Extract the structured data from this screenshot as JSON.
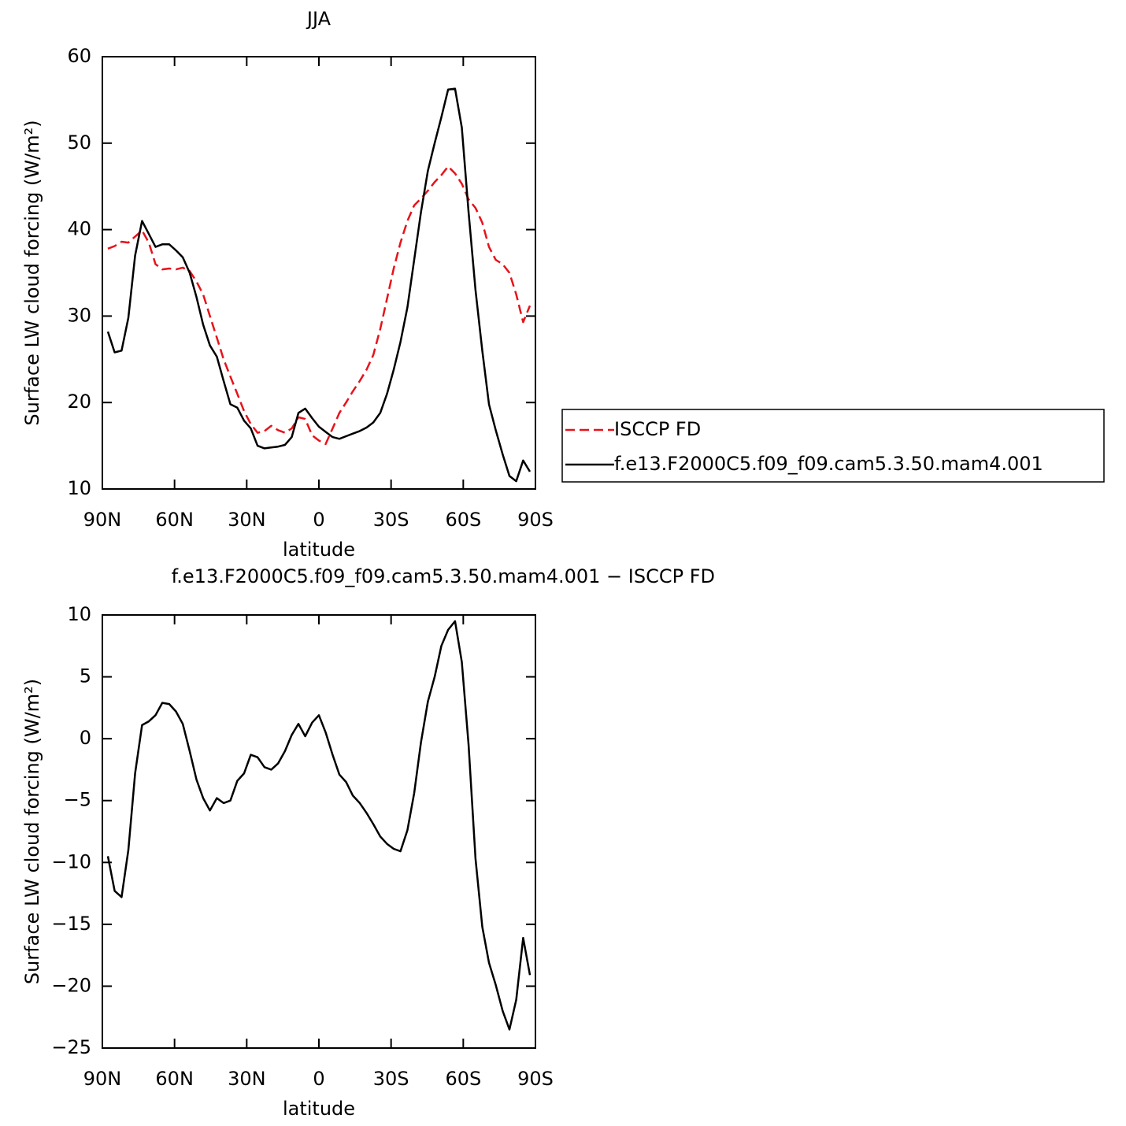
{
  "chart_data": [
    {
      "type": "line",
      "title": "JJA",
      "xlabel": "latitude",
      "ylabel": "Surface LW cloud forcing (W/m²)",
      "xlim": [
        90,
        -90
      ],
      "xticks": [
        {
          "value": 90,
          "label": "90N"
        },
        {
          "value": 60,
          "label": "60N"
        },
        {
          "value": 30,
          "label": "30N"
        },
        0,
        {
          "value": -30,
          "label": "30S"
        },
        {
          "value": -60,
          "label": "60S"
        },
        {
          "value": -90,
          "label": "90S"
        }
      ],
      "ylim": [
        10,
        60
      ],
      "yticks": [
        10,
        20,
        30,
        40,
        50,
        60
      ],
      "legend": "right",
      "x": [
        87.7,
        84.9,
        82.0,
        79.2,
        76.4,
        73.5,
        70.7,
        67.9,
        65.1,
        62.2,
        59.4,
        56.6,
        53.7,
        50.9,
        48.1,
        45.3,
        42.4,
        39.6,
        36.8,
        33.9,
        31.1,
        28.3,
        25.5,
        22.6,
        19.8,
        17.0,
        14.1,
        11.3,
        8.5,
        5.7,
        2.8,
        0,
        -2.8,
        -5.7,
        -8.5,
        -11.3,
        -14.1,
        -17.0,
        -19.8,
        -22.6,
        -25.5,
        -28.3,
        -31.1,
        -33.9,
        -36.8,
        -39.6,
        -42.4,
        -45.3,
        -48.1,
        -50.9,
        -53.7,
        -56.6,
        -59.4,
        -62.2,
        -65.1,
        -67.9,
        -70.7,
        -73.5,
        -76.4,
        -79.2,
        -82.0,
        -84.9,
        -87.7
      ],
      "series": [
        {
          "name": "ISCCP FD",
          "color": "#e8121a",
          "dash": true,
          "values": [
            37.8,
            38.1,
            38.6,
            38.5,
            39.2,
            39.9,
            38.5,
            36.0,
            35.4,
            35.5,
            35.4,
            35.6,
            35.2,
            34.0,
            32.5,
            30.0,
            27.5,
            25.0,
            23.0,
            21.0,
            19.0,
            17.5,
            16.5,
            16.7,
            17.3,
            16.8,
            16.5,
            17.0,
            18.3,
            18.1,
            16.2,
            15.6,
            15.2,
            17.0,
            18.8,
            20.0,
            21.3,
            22.5,
            23.8,
            25.5,
            28.5,
            32.0,
            35.5,
            38.5,
            41.0,
            42.8,
            43.6,
            44.5,
            45.5,
            46.3,
            47.3,
            46.5,
            45.3,
            43.5,
            42.5,
            40.8,
            38.0,
            36.5,
            36.0,
            35.0,
            32.5,
            29.3,
            31.2
          ]
        },
        {
          "name": "f.e13.F2000C5.f09_f09.cam5.3.50.mam4.001",
          "color": "#000000",
          "dash": false,
          "values": [
            28.2,
            25.8,
            26.0,
            29.8,
            37.0,
            41.0,
            39.5,
            38.0,
            38.3,
            38.3,
            37.6,
            36.8,
            35.0,
            32.2,
            29.0,
            26.6,
            25.3,
            22.5,
            19.8,
            19.4,
            17.9,
            17.0,
            15.0,
            14.7,
            14.8,
            14.9,
            15.1,
            16.0,
            18.8,
            19.3,
            18.2,
            17.2,
            16.6,
            16.0,
            15.8,
            16.1,
            16.4,
            16.7,
            17.1,
            17.7,
            18.8,
            21.0,
            23.8,
            27.0,
            31.0,
            36.5,
            42.0,
            46.8,
            50.0,
            53.0,
            56.2,
            56.3,
            51.8,
            42.0,
            33.0,
            26.0,
            19.8,
            16.8,
            14.0,
            11.5,
            10.9,
            13.3,
            12.0
          ]
        }
      ]
    },
    {
      "type": "line",
      "title": "f.e13.F2000C5.f09_f09.cam5.3.50.mam4.001 − ISCCP FD",
      "xlabel": "latitude",
      "ylabel": "Surface LW cloud forcing (W/m²)",
      "xlim": [
        90,
        -90
      ],
      "xticks": [
        {
          "value": 90,
          "label": "90N"
        },
        {
          "value": 60,
          "label": "60N"
        },
        {
          "value": 30,
          "label": "30N"
        },
        0,
        {
          "value": -30,
          "label": "30S"
        },
        {
          "value": -60,
          "label": "60S"
        },
        {
          "value": -90,
          "label": "90S"
        }
      ],
      "ylim": [
        -25,
        10
      ],
      "yticks": [
        {
          "value": -25,
          "label": "−25"
        },
        {
          "value": -20,
          "label": "−20"
        },
        {
          "value": -15,
          "label": "−15"
        },
        {
          "value": -10,
          "label": "−10"
        },
        {
          "value": -5,
          "label": "−5"
        },
        0,
        5,
        10
      ],
      "x": [
        87.7,
        84.9,
        82.0,
        79.2,
        76.4,
        73.5,
        70.7,
        67.9,
        65.1,
        62.2,
        59.4,
        56.6,
        53.7,
        50.9,
        48.1,
        45.3,
        42.4,
        39.6,
        36.8,
        33.9,
        31.1,
        28.3,
        25.5,
        22.6,
        19.8,
        17.0,
        14.1,
        11.3,
        8.5,
        5.7,
        2.8,
        0,
        -2.8,
        -5.7,
        -8.5,
        -11.3,
        -14.1,
        -17.0,
        -19.8,
        -22.6,
        -25.5,
        -28.3,
        -31.1,
        -33.9,
        -36.8,
        -39.6,
        -42.4,
        -45.3,
        -48.1,
        -50.9,
        -53.7,
        -56.6,
        -59.4,
        -62.2,
        -65.1,
        -67.9,
        -70.7,
        -73.5,
        -76.4,
        -79.2,
        -82.0,
        -84.9,
        -87.7
      ],
      "series": [
        {
          "color": "#000000",
          "dash": false,
          "values": [
            -9.5,
            -12.3,
            -12.8,
            -9.0,
            -2.8,
            1.1,
            1.4,
            1.9,
            2.9,
            2.8,
            2.2,
            1.2,
            -1.0,
            -3.3,
            -4.8,
            -5.8,
            -4.8,
            -5.2,
            -5.0,
            -3.4,
            -2.8,
            -1.3,
            -1.5,
            -2.3,
            -2.5,
            -2.0,
            -1.0,
            0.3,
            1.2,
            0.2,
            1.3,
            1.9,
            0.5,
            -1.3,
            -2.9,
            -3.5,
            -4.6,
            -5.2,
            -6.0,
            -6.9,
            -7.9,
            -8.5,
            -8.9,
            -9.1,
            -7.4,
            -4.4,
            -0.3,
            3.0,
            5.0,
            7.5,
            8.8,
            9.5,
            6.2,
            -0.5,
            -9.7,
            -15.2,
            -18.1,
            -19.9,
            -22.0,
            -23.5,
            -21.1,
            -16.1,
            -19.1
          ]
        }
      ]
    }
  ]
}
